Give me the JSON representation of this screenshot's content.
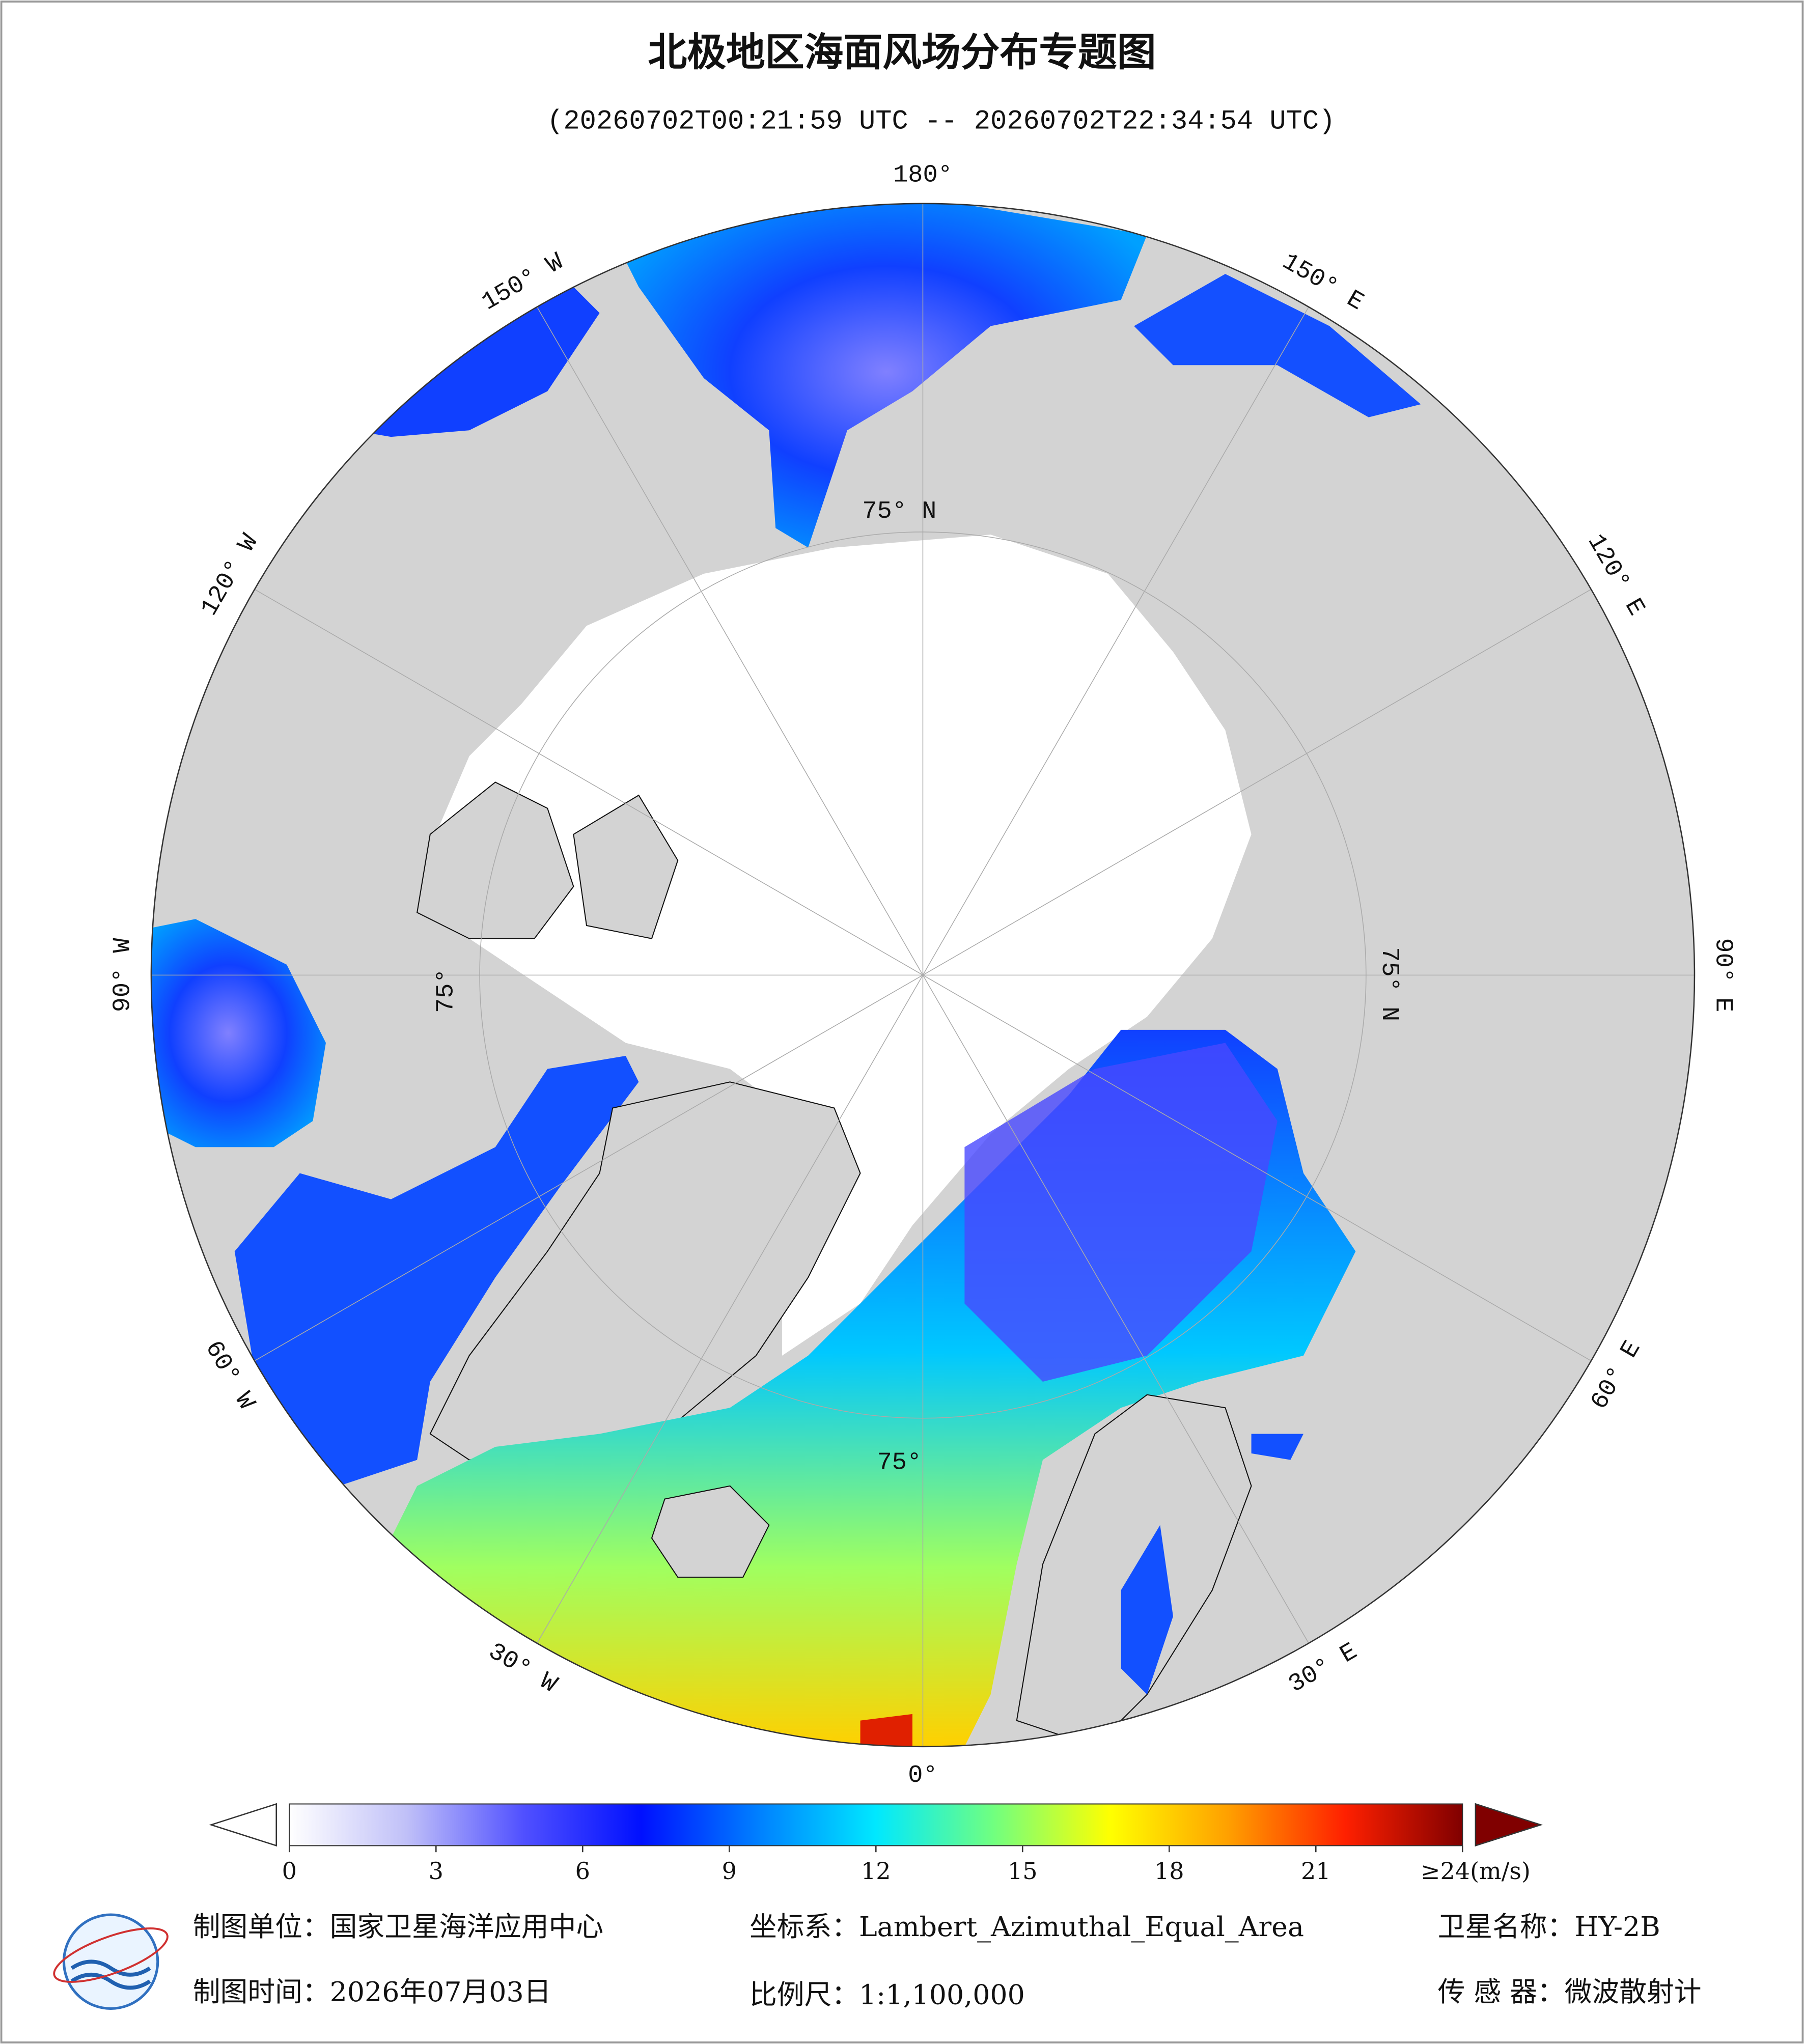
{
  "header": {
    "title": "北极地区海面风场分布专题图",
    "subtitle": "(20260702T00:21:59 UTC -- 20260702T22:34:54 UTC)"
  },
  "map": {
    "longitude_labels": [
      "180°",
      "150° E",
      "120° E",
      "90° E",
      "60° E",
      "30° E",
      "0°",
      "30° W",
      "60° W",
      "90° W",
      "120° W",
      "150° W"
    ],
    "latitude_labels": [
      "75° N",
      "75° N",
      "75°",
      "75°"
    ]
  },
  "colorbar": {
    "lim": [
      0,
      24
    ],
    "colors": [
      "#ffffff",
      "#c0c0f8",
      "#5050ff",
      "#0010ff",
      "#0080ff",
      "#00e8ff",
      "#70ff80",
      "#ffff00",
      "#ffa000",
      "#ff2000",
      "#800000"
    ],
    "over_color": "#800000",
    "ticks": [
      0,
      3,
      6,
      9,
      12,
      15,
      18,
      21,
      {
        "value": 24,
        "label": "≥24(m/s)"
      }
    ]
  },
  "footer": {
    "items": [
      "制图单位：国家卫星海洋应用中心",
      "坐标系：Lambert_Azimuthal_Equal_Area",
      "卫星名称：HY-2B",
      "制图时间：2026年07月03日",
      "比例尺：1:1,100,000",
      "传 感 器：微波散射计"
    ]
  }
}
